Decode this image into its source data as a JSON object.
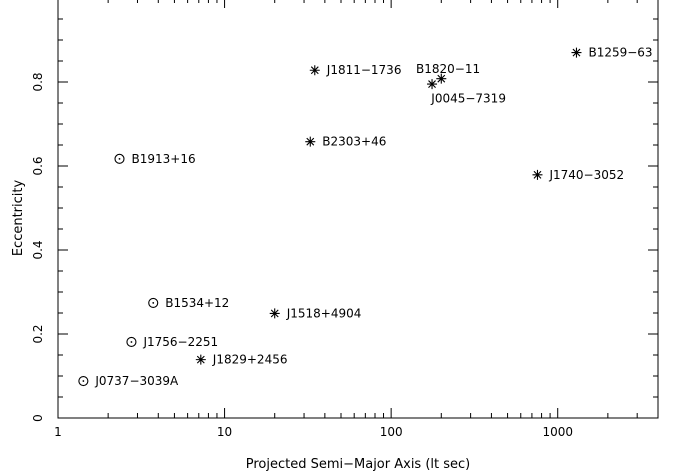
{
  "chart_data": {
    "type": "scatter",
    "title": "",
    "xlabel": "Projected Semi−Major Axis (lt sec)",
    "ylabel": "Eccentricity",
    "xscale": "log",
    "xlim": [
      1,
      4000
    ],
    "ylim": [
      0,
      1
    ],
    "grid": false,
    "x_ticks": [
      {
        "value": 1,
        "label": "1"
      },
      {
        "value": 10,
        "label": "10"
      },
      {
        "value": 100,
        "label": "100"
      },
      {
        "value": 1000,
        "label": "1000"
      }
    ],
    "y_ticks": [
      {
        "value": 0,
        "label": "0"
      },
      {
        "value": 0.2,
        "label": "0.2"
      },
      {
        "value": 0.4,
        "label": "0.4"
      },
      {
        "value": 0.6,
        "label": "0.6"
      },
      {
        "value": 0.8,
        "label": "0.8"
      }
    ],
    "points": [
      {
        "name": "J0737−3039A",
        "x": 1.42,
        "y": 0.088,
        "marker": "circle",
        "label_pos": "right"
      },
      {
        "name": "J1756−2251",
        "x": 2.76,
        "y": 0.181,
        "marker": "circle",
        "label_pos": "right"
      },
      {
        "name": "B1534+12",
        "x": 3.73,
        "y": 0.274,
        "marker": "circle",
        "label_pos": "right"
      },
      {
        "name": "B1913+16",
        "x": 2.34,
        "y": 0.617,
        "marker": "circle",
        "label_pos": "right"
      },
      {
        "name": "J1829+2456",
        "x": 7.2,
        "y": 0.139,
        "marker": "star",
        "label_pos": "right"
      },
      {
        "name": "J1518+4904",
        "x": 20.0,
        "y": 0.249,
        "marker": "star",
        "label_pos": "right"
      },
      {
        "name": "B2303+46",
        "x": 32.7,
        "y": 0.658,
        "marker": "star",
        "label_pos": "right"
      },
      {
        "name": "J1811−1736",
        "x": 34.8,
        "y": 0.828,
        "marker": "star",
        "label_pos": "right"
      },
      {
        "name": "B1820−11",
        "x": 176,
        "y": 0.795,
        "marker": "star",
        "label_pos": "top-left"
      },
      {
        "name": "J0045−7319",
        "x": 200,
        "y": 0.808,
        "marker": "star",
        "label_pos": "bottom"
      },
      {
        "name": "J1740−3052",
        "x": 756,
        "y": 0.579,
        "marker": "star",
        "label_pos": "right"
      },
      {
        "name": "B1259−63",
        "x": 1296,
        "y": 0.87,
        "marker": "star",
        "label_pos": "right"
      }
    ]
  }
}
